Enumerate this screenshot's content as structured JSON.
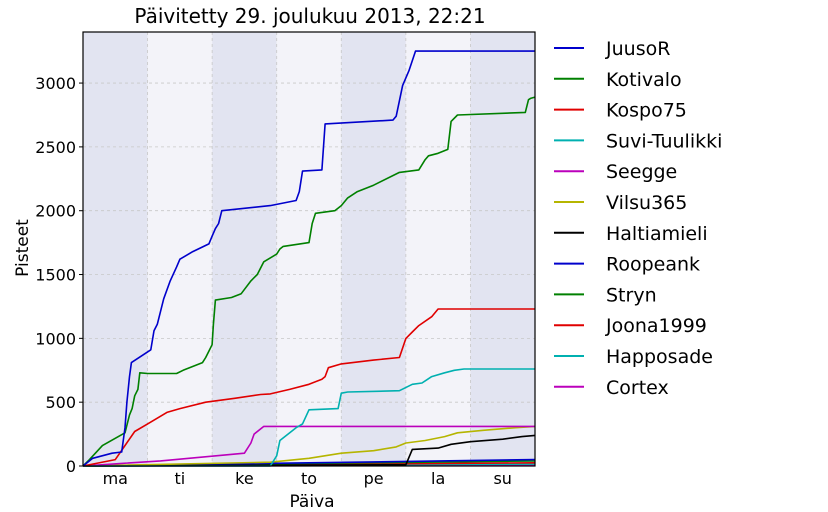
{
  "chart_data": {
    "type": "line",
    "title": "Päivitetty 29. joulukuu 2013, 22:21",
    "xlabel": "Päiva",
    "ylabel": "Pisteet",
    "xlim": [
      0,
      7
    ],
    "ylim": [
      0,
      3400
    ],
    "grid": true,
    "legend_position": "right",
    "x_ticks": [
      {
        "label": "ma",
        "x": 0.5
      },
      {
        "label": "ti",
        "x": 1.5
      },
      {
        "label": "ke",
        "x": 2.5
      },
      {
        "label": "to",
        "x": 3.5
      },
      {
        "label": "pe",
        "x": 4.5
      },
      {
        "label": "la",
        "x": 5.5
      },
      {
        "label": "su",
        "x": 6.5
      }
    ],
    "y_ticks": [
      0,
      500,
      1000,
      1500,
      2000,
      2500,
      3000
    ],
    "day_bands": [
      {
        "from": 0,
        "to": 1,
        "color": "#e2e4f1"
      },
      {
        "from": 1,
        "to": 2,
        "color": "#f3f3f9"
      },
      {
        "from": 2,
        "to": 3,
        "color": "#e2e4f1"
      },
      {
        "from": 3,
        "to": 4,
        "color": "#f3f3f9"
      },
      {
        "from": 4,
        "to": 5,
        "color": "#e2e4f1"
      },
      {
        "from": 5,
        "to": 6,
        "color": "#f3f3f9"
      },
      {
        "from": 6,
        "to": 7,
        "color": "#e2e4f1"
      }
    ],
    "series": [
      {
        "name": "JuusoR",
        "color": "#0000cc",
        "points": [
          [
            0,
            0
          ],
          [
            0.15,
            60
          ],
          [
            0.45,
            100
          ],
          [
            0.6,
            110
          ],
          [
            0.65,
            300
          ],
          [
            0.68,
            500
          ],
          [
            0.7,
            600
          ],
          [
            0.72,
            700
          ],
          [
            0.75,
            810
          ],
          [
            0.9,
            860
          ],
          [
            1.05,
            910
          ],
          [
            1.1,
            1060
          ],
          [
            1.15,
            1110
          ],
          [
            1.25,
            1310
          ],
          [
            1.35,
            1450
          ],
          [
            1.45,
            1560
          ],
          [
            1.5,
            1620
          ],
          [
            1.7,
            1680
          ],
          [
            1.95,
            1740
          ],
          [
            2.0,
            1800
          ],
          [
            2.05,
            1860
          ],
          [
            2.1,
            1900
          ],
          [
            2.15,
            2000
          ],
          [
            2.9,
            2040
          ],
          [
            3.3,
            2080
          ],
          [
            3.35,
            2150
          ],
          [
            3.4,
            2310
          ],
          [
            3.7,
            2320
          ],
          [
            3.75,
            2680
          ],
          [
            4.8,
            2710
          ],
          [
            4.85,
            2740
          ],
          [
            4.95,
            2980
          ],
          [
            5.05,
            3100
          ],
          [
            5.15,
            3250
          ],
          [
            7.0,
            3250
          ]
        ]
      },
      {
        "name": "Kotivalo",
        "color": "#008000",
        "points": [
          [
            0,
            0
          ],
          [
            0.1,
            50
          ],
          [
            0.3,
            160
          ],
          [
            0.65,
            260
          ],
          [
            0.72,
            400
          ],
          [
            0.76,
            450
          ],
          [
            0.8,
            550
          ],
          [
            0.85,
            600
          ],
          [
            0.88,
            730
          ],
          [
            1.0,
            725
          ],
          [
            1.45,
            725
          ],
          [
            1.55,
            750
          ],
          [
            1.85,
            810
          ],
          [
            1.9,
            850
          ],
          [
            1.95,
            900
          ],
          [
            2.0,
            950
          ],
          [
            2.02,
            1110
          ],
          [
            2.05,
            1300
          ],
          [
            2.3,
            1320
          ],
          [
            2.45,
            1350
          ],
          [
            2.6,
            1450
          ],
          [
            2.7,
            1500
          ],
          [
            2.8,
            1600
          ],
          [
            3.0,
            1660
          ],
          [
            3.05,
            1700
          ],
          [
            3.1,
            1720
          ],
          [
            3.5,
            1750
          ],
          [
            3.55,
            1900
          ],
          [
            3.6,
            1980
          ],
          [
            3.9,
            2000
          ],
          [
            4.0,
            2040
          ],
          [
            4.1,
            2100
          ],
          [
            4.25,
            2150
          ],
          [
            4.5,
            2200
          ],
          [
            4.9,
            2300
          ],
          [
            5.2,
            2320
          ],
          [
            5.3,
            2400
          ],
          [
            5.35,
            2430
          ],
          [
            5.5,
            2450
          ],
          [
            5.65,
            2480
          ],
          [
            5.7,
            2700
          ],
          [
            5.8,
            2750
          ],
          [
            6.85,
            2770
          ],
          [
            6.9,
            2870
          ],
          [
            6.93,
            2880
          ],
          [
            7.0,
            2890
          ]
        ]
      },
      {
        "name": "Kospo75",
        "color": "#e00000",
        "points": [
          [
            0,
            0
          ],
          [
            0.5,
            50
          ],
          [
            0.8,
            270
          ],
          [
            1.0,
            330
          ],
          [
            1.3,
            420
          ],
          [
            1.5,
            450
          ],
          [
            1.9,
            500
          ],
          [
            2.35,
            530
          ],
          [
            2.75,
            560
          ],
          [
            2.9,
            565
          ],
          [
            3.2,
            600
          ],
          [
            3.5,
            640
          ],
          [
            3.7,
            680
          ],
          [
            3.75,
            700
          ],
          [
            3.8,
            770
          ],
          [
            4.0,
            800
          ],
          [
            4.5,
            830
          ],
          [
            4.9,
            850
          ],
          [
            5.0,
            1000
          ],
          [
            5.1,
            1050
          ],
          [
            5.2,
            1100
          ],
          [
            5.4,
            1170
          ],
          [
            5.5,
            1230
          ],
          [
            7.0,
            1230
          ]
        ]
      },
      {
        "name": "Suvi-Tuulikki",
        "color": "#00b0b0",
        "points": [
          [
            0,
            0
          ],
          [
            2.9,
            0
          ],
          [
            3.0,
            80
          ],
          [
            3.05,
            200
          ],
          [
            3.3,
            300
          ],
          [
            3.4,
            330
          ],
          [
            3.5,
            440
          ],
          [
            3.95,
            450
          ],
          [
            4.0,
            570
          ],
          [
            4.1,
            580
          ],
          [
            4.9,
            590
          ],
          [
            5.1,
            640
          ],
          [
            5.25,
            650
          ],
          [
            5.4,
            700
          ],
          [
            5.6,
            730
          ],
          [
            5.75,
            750
          ],
          [
            5.9,
            760
          ],
          [
            7.0,
            760
          ]
        ]
      },
      {
        "name": "Seegge",
        "color": "#bb00bb",
        "points": [
          [
            0,
            0
          ],
          [
            0.6,
            20
          ],
          [
            1.2,
            40
          ],
          [
            2.5,
            100
          ],
          [
            2.6,
            180
          ],
          [
            2.65,
            250
          ],
          [
            2.8,
            310
          ],
          [
            7.0,
            310
          ]
        ]
      },
      {
        "name": "Vilsu365",
        "color": "#b5b500",
        "points": [
          [
            0,
            0
          ],
          [
            2.9,
            30
          ],
          [
            3.5,
            60
          ],
          [
            4.0,
            100
          ],
          [
            4.5,
            120
          ],
          [
            4.85,
            150
          ],
          [
            5.0,
            180
          ],
          [
            5.3,
            200
          ],
          [
            5.6,
            230
          ],
          [
            5.8,
            260
          ],
          [
            6.2,
            280
          ],
          [
            6.7,
            300
          ],
          [
            7.0,
            310
          ]
        ]
      },
      {
        "name": "Haltiamieli",
        "color": "#000000",
        "points": [
          [
            0,
            0
          ],
          [
            5.0,
            10
          ],
          [
            5.1,
            130
          ],
          [
            5.5,
            140
          ],
          [
            5.7,
            170
          ],
          [
            6.0,
            190
          ],
          [
            6.5,
            210
          ],
          [
            6.8,
            230
          ],
          [
            7.0,
            240
          ]
        ]
      },
      {
        "name": "Roopeank",
        "color": "#0000cc",
        "points": [
          [
            0,
            0
          ],
          [
            7.0,
            50
          ]
        ]
      },
      {
        "name": "Stryn",
        "color": "#008000",
        "points": [
          [
            0,
            0
          ],
          [
            7.0,
            40
          ]
        ]
      },
      {
        "name": "Joona1999",
        "color": "#e00000",
        "points": [
          [
            0,
            0
          ],
          [
            7.0,
            25
          ]
        ]
      },
      {
        "name": "Happosade",
        "color": "#00b0b0",
        "points": [
          [
            0,
            0
          ],
          [
            7.0,
            15
          ]
        ]
      },
      {
        "name": "Cortex",
        "color": "#bb00bb",
        "points": [
          [
            0,
            0
          ],
          [
            7.0,
            5
          ]
        ]
      }
    ]
  }
}
